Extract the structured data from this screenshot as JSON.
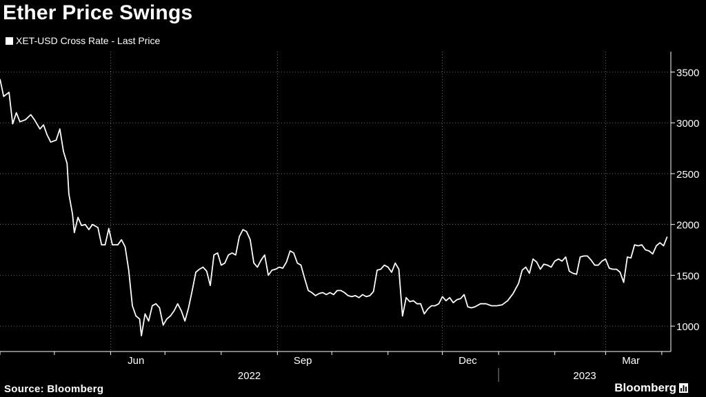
{
  "title": "Ether Price Swings",
  "legend": {
    "label": "XET-USD Cross Rate - Last Price",
    "color": "#ffffff"
  },
  "footer": {
    "source": "Source: Bloomberg",
    "brand": "Bloomberg",
    "brand_icon": "bar-chart-icon"
  },
  "colors": {
    "background": "#000000",
    "line": "#ffffff",
    "grid": "#8a8a8a"
  },
  "chart_data": {
    "type": "line",
    "title": "Ether Price Swings",
    "series": [
      {
        "name": "XET-USD Cross Rate - Last Price",
        "points": [
          [
            "2022-04-01",
            3430
          ],
          [
            "2022-04-03",
            3260
          ],
          [
            "2022-04-06",
            3300
          ],
          [
            "2022-04-08",
            2990
          ],
          [
            "2022-04-10",
            3100
          ],
          [
            "2022-04-12",
            3010
          ],
          [
            "2022-04-15",
            3030
          ],
          [
            "2022-04-18",
            3080
          ],
          [
            "2022-04-20",
            3030
          ],
          [
            "2022-04-23",
            2940
          ],
          [
            "2022-04-25",
            2980
          ],
          [
            "2022-04-27",
            2880
          ],
          [
            "2022-04-29",
            2810
          ],
          [
            "2022-05-02",
            2830
          ],
          [
            "2022-05-04",
            2940
          ],
          [
            "2022-05-06",
            2720
          ],
          [
            "2022-05-08",
            2600
          ],
          [
            "2022-05-09",
            2300
          ],
          [
            "2022-05-11",
            2100
          ],
          [
            "2022-05-12",
            1920
          ],
          [
            "2022-05-14",
            2070
          ],
          [
            "2022-05-16",
            1990
          ],
          [
            "2022-05-18",
            2000
          ],
          [
            "2022-05-20",
            1950
          ],
          [
            "2022-05-22",
            2000
          ],
          [
            "2022-05-25",
            1970
          ],
          [
            "2022-05-27",
            1800
          ],
          [
            "2022-05-29",
            1800
          ],
          [
            "2022-05-31",
            1960
          ],
          [
            "2022-06-02",
            1800
          ],
          [
            "2022-06-05",
            1800
          ],
          [
            "2022-06-07",
            1850
          ],
          [
            "2022-06-09",
            1780
          ],
          [
            "2022-06-11",
            1550
          ],
          [
            "2022-06-13",
            1200
          ],
          [
            "2022-06-15",
            1100
          ],
          [
            "2022-06-17",
            1070
          ],
          [
            "2022-06-18",
            905
          ],
          [
            "2022-06-20",
            1120
          ],
          [
            "2022-06-22",
            1050
          ],
          [
            "2022-06-24",
            1200
          ],
          [
            "2022-06-26",
            1220
          ],
          [
            "2022-06-28",
            1180
          ],
          [
            "2022-06-30",
            1010
          ],
          [
            "2022-07-02",
            1070
          ],
          [
            "2022-07-04",
            1100
          ],
          [
            "2022-07-06",
            1150
          ],
          [
            "2022-07-08",
            1220
          ],
          [
            "2022-07-10",
            1150
          ],
          [
            "2022-07-12",
            1050
          ],
          [
            "2022-07-14",
            1180
          ],
          [
            "2022-07-16",
            1350
          ],
          [
            "2022-07-18",
            1530
          ],
          [
            "2022-07-20",
            1560
          ],
          [
            "2022-07-22",
            1580
          ],
          [
            "2022-07-24",
            1540
          ],
          [
            "2022-07-26",
            1400
          ],
          [
            "2022-07-28",
            1700
          ],
          [
            "2022-07-30",
            1720
          ],
          [
            "2022-08-01",
            1600
          ],
          [
            "2022-08-03",
            1620
          ],
          [
            "2022-08-05",
            1700
          ],
          [
            "2022-08-07",
            1720
          ],
          [
            "2022-08-09",
            1700
          ],
          [
            "2022-08-11",
            1880
          ],
          [
            "2022-08-13",
            1950
          ],
          [
            "2022-08-15",
            1930
          ],
          [
            "2022-08-17",
            1850
          ],
          [
            "2022-08-19",
            1620
          ],
          [
            "2022-08-21",
            1580
          ],
          [
            "2022-08-23",
            1650
          ],
          [
            "2022-08-25",
            1700
          ],
          [
            "2022-08-27",
            1500
          ],
          [
            "2022-08-29",
            1550
          ],
          [
            "2022-08-31",
            1560
          ],
          [
            "2022-09-02",
            1580
          ],
          [
            "2022-09-04",
            1570
          ],
          [
            "2022-09-06",
            1630
          ],
          [
            "2022-09-08",
            1740
          ],
          [
            "2022-09-10",
            1720
          ],
          [
            "2022-09-12",
            1620
          ],
          [
            "2022-09-14",
            1600
          ],
          [
            "2022-09-16",
            1470
          ],
          [
            "2022-09-18",
            1350
          ],
          [
            "2022-09-20",
            1330
          ],
          [
            "2022-09-22",
            1300
          ],
          [
            "2022-09-24",
            1320
          ],
          [
            "2022-09-26",
            1330
          ],
          [
            "2022-09-28",
            1310
          ],
          [
            "2022-09-30",
            1330
          ],
          [
            "2022-10-02",
            1310
          ],
          [
            "2022-10-04",
            1350
          ],
          [
            "2022-10-06",
            1350
          ],
          [
            "2022-10-08",
            1330
          ],
          [
            "2022-10-10",
            1300
          ],
          [
            "2022-10-12",
            1290
          ],
          [
            "2022-10-14",
            1300
          ],
          [
            "2022-10-16",
            1280
          ],
          [
            "2022-10-18",
            1310
          ],
          [
            "2022-10-20",
            1290
          ],
          [
            "2022-10-22",
            1300
          ],
          [
            "2022-10-24",
            1340
          ],
          [
            "2022-10-26",
            1550
          ],
          [
            "2022-10-28",
            1560
          ],
          [
            "2022-10-30",
            1600
          ],
          [
            "2022-11-01",
            1580
          ],
          [
            "2022-11-03",
            1530
          ],
          [
            "2022-11-05",
            1620
          ],
          [
            "2022-11-07",
            1560
          ],
          [
            "2022-11-09",
            1100
          ],
          [
            "2022-11-11",
            1280
          ],
          [
            "2022-11-13",
            1240
          ],
          [
            "2022-11-15",
            1250
          ],
          [
            "2022-11-17",
            1220
          ],
          [
            "2022-11-19",
            1220
          ],
          [
            "2022-11-21",
            1120
          ],
          [
            "2022-11-23",
            1170
          ],
          [
            "2022-11-25",
            1200
          ],
          [
            "2022-11-27",
            1200
          ],
          [
            "2022-11-29",
            1220
          ],
          [
            "2022-12-01",
            1290
          ],
          [
            "2022-12-03",
            1250
          ],
          [
            "2022-12-05",
            1280
          ],
          [
            "2022-12-07",
            1230
          ],
          [
            "2022-12-09",
            1260
          ],
          [
            "2022-12-11",
            1270
          ],
          [
            "2022-12-13",
            1310
          ],
          [
            "2022-12-15",
            1190
          ],
          [
            "2022-12-17",
            1180
          ],
          [
            "2022-12-19",
            1190
          ],
          [
            "2022-12-22",
            1220
          ],
          [
            "2022-12-25",
            1220
          ],
          [
            "2022-12-28",
            1200
          ],
          [
            "2022-12-31",
            1200
          ],
          [
            "2023-01-03",
            1210
          ],
          [
            "2023-01-06",
            1250
          ],
          [
            "2023-01-09",
            1320
          ],
          [
            "2023-01-12",
            1420
          ],
          [
            "2023-01-14",
            1550
          ],
          [
            "2023-01-16",
            1580
          ],
          [
            "2023-01-18",
            1520
          ],
          [
            "2023-01-20",
            1660
          ],
          [
            "2023-01-22",
            1630
          ],
          [
            "2023-01-24",
            1560
          ],
          [
            "2023-01-26",
            1610
          ],
          [
            "2023-01-28",
            1600
          ],
          [
            "2023-01-30",
            1580
          ],
          [
            "2023-02-01",
            1640
          ],
          [
            "2023-02-03",
            1660
          ],
          [
            "2023-02-05",
            1640
          ],
          [
            "2023-02-07",
            1680
          ],
          [
            "2023-02-09",
            1540
          ],
          [
            "2023-02-11",
            1520
          ],
          [
            "2023-02-13",
            1510
          ],
          [
            "2023-02-15",
            1680
          ],
          [
            "2023-02-17",
            1690
          ],
          [
            "2023-02-19",
            1690
          ],
          [
            "2023-02-21",
            1650
          ],
          [
            "2023-02-23",
            1600
          ],
          [
            "2023-02-25",
            1600
          ],
          [
            "2023-02-27",
            1640
          ],
          [
            "2023-03-01",
            1660
          ],
          [
            "2023-03-03",
            1570
          ],
          [
            "2023-03-05",
            1560
          ],
          [
            "2023-03-07",
            1560
          ],
          [
            "2023-03-09",
            1530
          ],
          [
            "2023-03-11",
            1430
          ],
          [
            "2023-03-13",
            1680
          ],
          [
            "2023-03-15",
            1670
          ],
          [
            "2023-03-17",
            1800
          ],
          [
            "2023-03-19",
            1790
          ],
          [
            "2023-03-21",
            1800
          ],
          [
            "2023-03-23",
            1750
          ],
          [
            "2023-03-25",
            1740
          ],
          [
            "2023-03-27",
            1710
          ],
          [
            "2023-03-29",
            1790
          ],
          [
            "2023-03-31",
            1820
          ],
          [
            "2023-04-02",
            1790
          ],
          [
            "2023-04-04",
            1880
          ]
        ]
      }
    ],
    "x_ticks": [
      {
        "label": "Jun",
        "date": "2022-06-01"
      },
      {
        "label": "Sep",
        "date": "2022-09-01"
      },
      {
        "label": "Dec",
        "date": "2022-12-01"
      },
      {
        "label": "Mar",
        "date": "2023-03-01"
      }
    ],
    "x_year_labels": [
      {
        "label": "2022",
        "from": "2022-04-01",
        "to": "2023-01-01"
      },
      {
        "label": "2023",
        "from": "2023-01-01",
        "to": "2023-04-06"
      }
    ],
    "xlim": [
      "2022-04-01",
      "2023-04-06"
    ],
    "y_ticks": [
      1000,
      1500,
      2000,
      2500,
      3000,
      3500
    ],
    "ylim": [
      750,
      3700
    ],
    "y_axis_side": "right",
    "grid": true,
    "legend_position": "top-left"
  }
}
